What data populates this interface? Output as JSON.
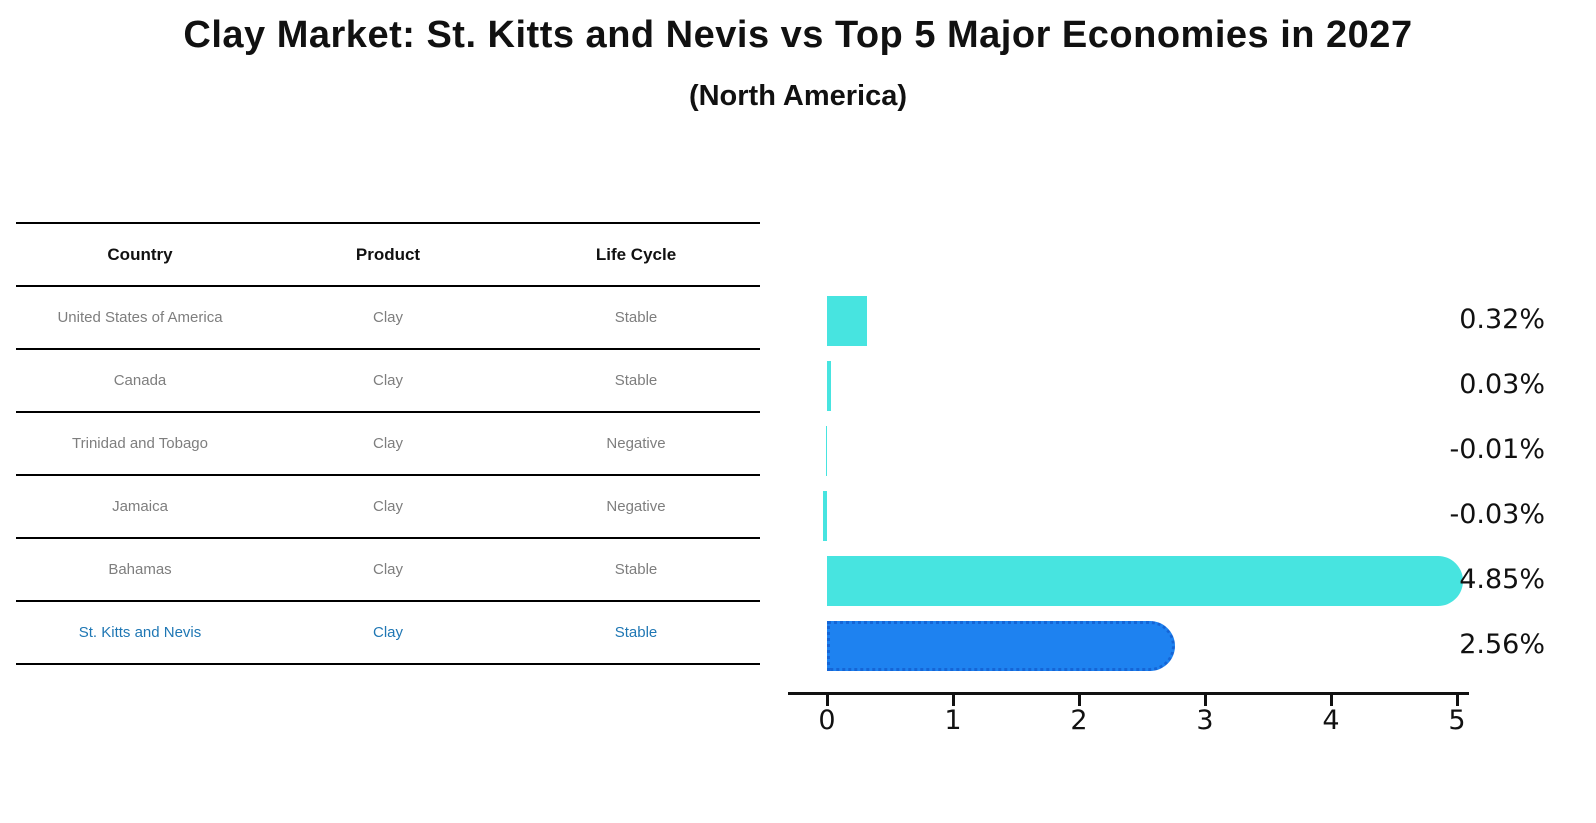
{
  "title": "Clay Market: St. Kitts and Nevis vs Top 5 Major Economies in 2027",
  "subtitle": "(North America)",
  "table": {
    "headers": [
      "Country",
      "Product",
      "Life Cycle"
    ],
    "rows": [
      {
        "country": "United States of America",
        "product": "Clay",
        "life_cycle": "Stable",
        "highlight": false
      },
      {
        "country": "Canada",
        "product": "Clay",
        "life_cycle": "Stable",
        "highlight": false
      },
      {
        "country": "Trinidad and Tobago",
        "product": "Clay",
        "life_cycle": "Negative",
        "highlight": false
      },
      {
        "country": "Jamaica",
        "product": "Clay",
        "life_cycle": "Negative",
        "highlight": false
      },
      {
        "country": "Bahamas",
        "product": "Clay",
        "life_cycle": "Stable",
        "highlight": false
      },
      {
        "country": "St. Kitts and Nevis",
        "product": "Clay",
        "life_cycle": "Stable",
        "highlight": true
      }
    ]
  },
  "chart_data": {
    "type": "bar",
    "orientation": "horizontal",
    "title": "Clay Market: St. Kitts and Nevis vs Top 5 Major Economies in 2027 (North America)",
    "categories": [
      "United States of America",
      "Canada",
      "Trinidad and Tobago",
      "Jamaica",
      "Bahamas",
      "St. Kitts and Nevis"
    ],
    "values": [
      0.32,
      0.03,
      -0.01,
      -0.03,
      4.85,
      2.56
    ],
    "value_labels": [
      "0.32%",
      "0.03%",
      "-0.01%",
      "-0.03%",
      "4.85%",
      "2.56%"
    ],
    "highlight_index": 5,
    "xlim": [
      0,
      5
    ],
    "xticks": [
      "0",
      "1",
      "2",
      "3",
      "4",
      "5"
    ],
    "grid": false,
    "legend": "none",
    "colors": {
      "bar_default": "#47e4e0",
      "bar_highlight": "#1e82f0",
      "bar_highlight_border": "#1565d6",
      "highlight_text": "#1f77b4",
      "row_text": "#7e7e7e",
      "axis": "#111111"
    }
  }
}
